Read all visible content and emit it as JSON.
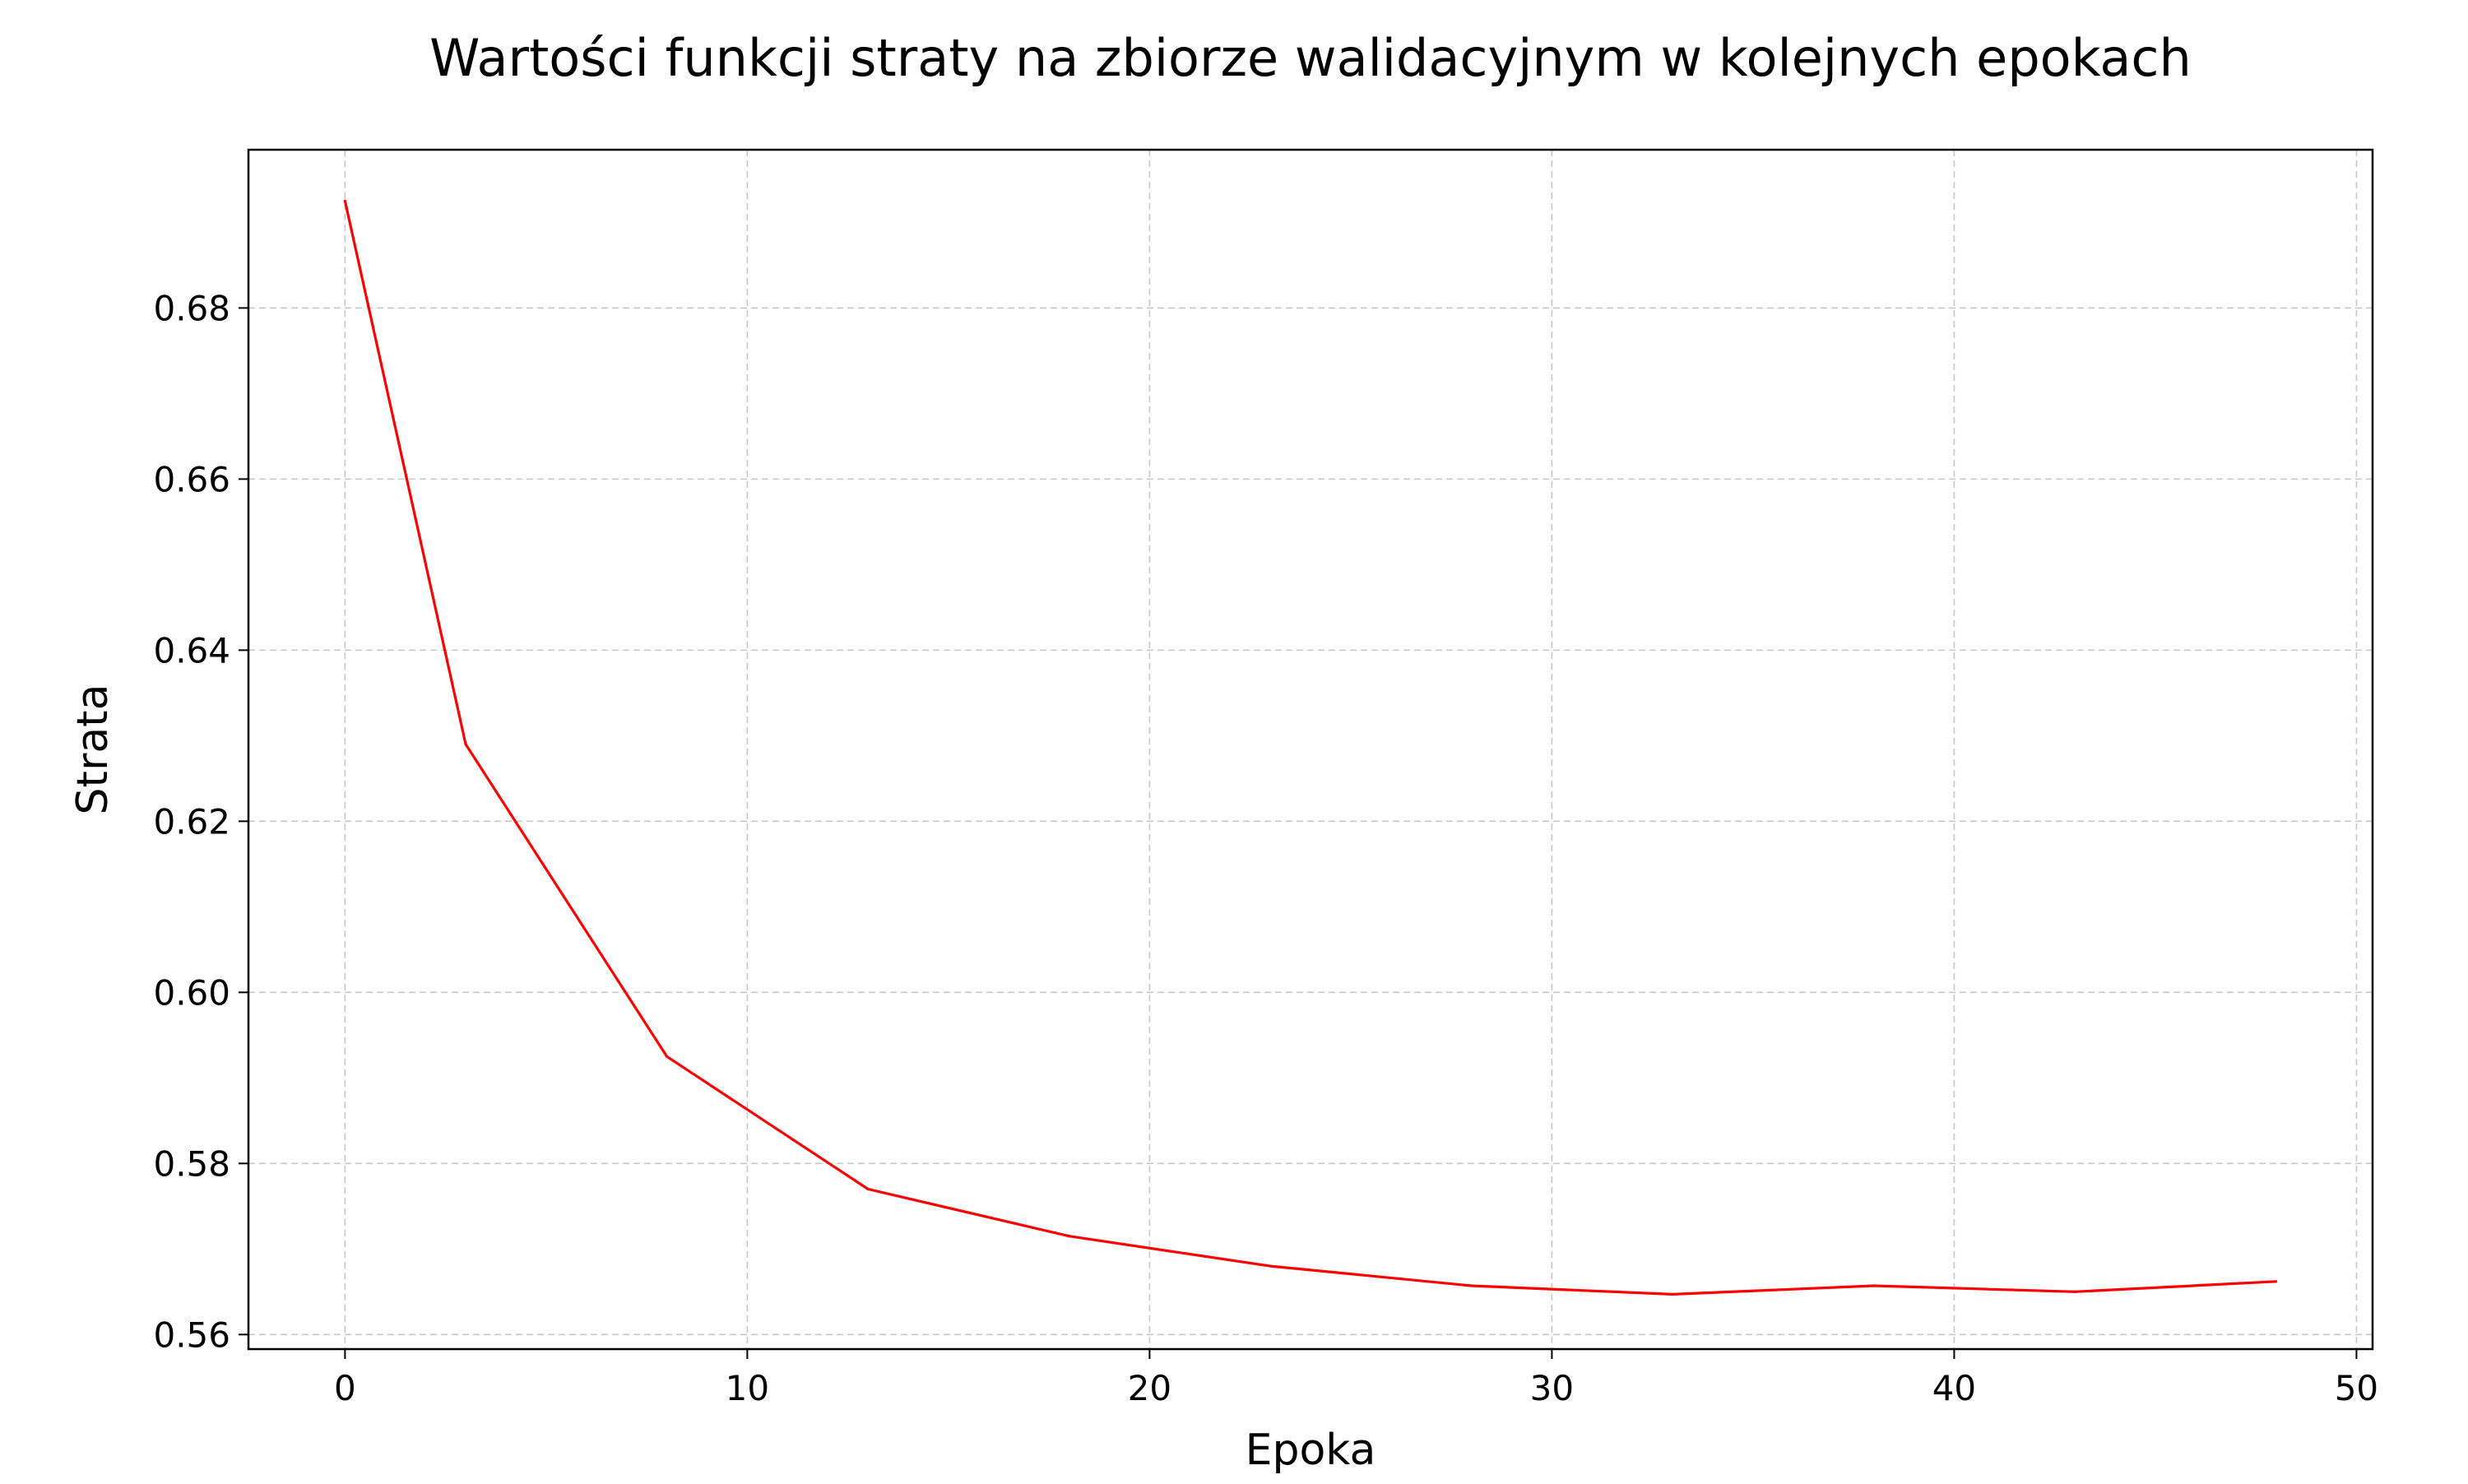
{
  "chart_data": {
    "type": "line",
    "title": "Wartości funkcji straty na zbiorze walidacyjnym w kolejnych epokach",
    "xlabel": "Epoka",
    "ylabel": "Strata",
    "xlim": [
      -2.4,
      50.4
    ],
    "ylim": [
      0.5583,
      0.6985
    ],
    "x_ticks": [
      0,
      10,
      20,
      30,
      40,
      50
    ],
    "x_tick_labels": [
      "0",
      "10",
      "20",
      "30",
      "40",
      "50"
    ],
    "y_ticks": [
      0.56,
      0.58,
      0.6,
      0.62,
      0.64,
      0.66,
      0.68
    ],
    "y_tick_labels": [
      "0.56",
      "0.58",
      "0.60",
      "0.62",
      "0.64",
      "0.66",
      "0.68"
    ],
    "grid": true,
    "grid_style": "dashed",
    "series": [
      {
        "x": [
          0,
          3,
          8,
          13,
          18,
          23,
          28,
          33,
          38,
          43,
          48
        ],
        "y": [
          0.6925,
          0.629,
          0.5925,
          0.577,
          0.5715,
          0.568,
          0.5657,
          0.5647,
          0.5657,
          0.565,
          0.5662
        ],
        "color": "#ff0000"
      }
    ]
  }
}
